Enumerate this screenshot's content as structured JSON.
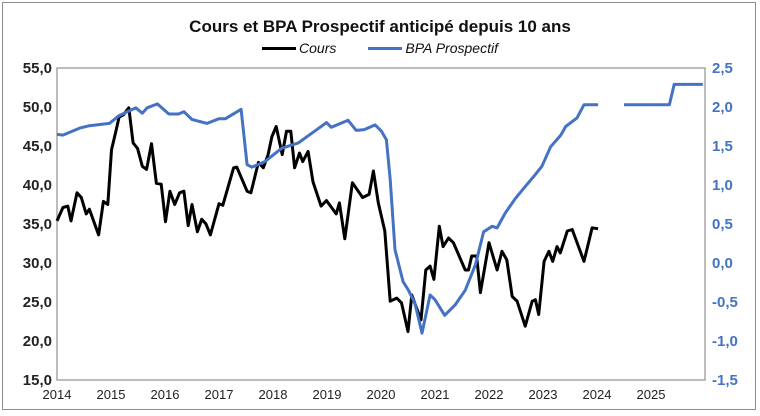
{
  "chart_data": {
    "type": "line",
    "title": "Cours et BPA Prospectif anticipé depuis 10 ans",
    "xlim": [
      2014,
      2026
    ],
    "x_ticks": [
      "2014",
      "2015",
      "2016",
      "2017",
      "2018",
      "2019",
      "2020",
      "2021",
      "2022",
      "2023",
      "2024",
      "2025"
    ],
    "y_left": {
      "lim": [
        15,
        55
      ],
      "ticks": [
        "15,0",
        "20,0",
        "25,0",
        "30,0",
        "35,0",
        "40,0",
        "45,0",
        "50,0",
        "55,0"
      ]
    },
    "y_right": {
      "lim": [
        -1.5,
        2.5
      ],
      "ticks": [
        "-1,5",
        "-1,0",
        "-0,5",
        "0,0",
        "0,5",
        "1,0",
        "1,5",
        "2,0",
        "2,5"
      ]
    },
    "legend_position": "top-center",
    "series": [
      {
        "name": "Cours",
        "axis": "left",
        "color": "#000000",
        "points": [
          [
            2014.0,
            35.4
          ],
          [
            2014.11,
            37.1
          ],
          [
            2014.2,
            37.3
          ],
          [
            2014.26,
            35.4
          ],
          [
            2014.37,
            39.0
          ],
          [
            2014.45,
            38.4
          ],
          [
            2014.54,
            36.3
          ],
          [
            2014.6,
            36.9
          ],
          [
            2014.77,
            33.6
          ],
          [
            2014.86,
            37.9
          ],
          [
            2014.94,
            37.5
          ],
          [
            2015.01,
            44.5
          ],
          [
            2015.09,
            46.9
          ],
          [
            2015.15,
            48.7
          ],
          [
            2015.23,
            49.0
          ],
          [
            2015.33,
            49.9
          ],
          [
            2015.41,
            45.4
          ],
          [
            2015.49,
            44.7
          ],
          [
            2015.58,
            42.4
          ],
          [
            2015.66,
            42.0
          ],
          [
            2015.75,
            45.3
          ],
          [
            2015.84,
            40.2
          ],
          [
            2015.93,
            40.1
          ],
          [
            2016.01,
            35.3
          ],
          [
            2016.09,
            39.2
          ],
          [
            2016.18,
            37.5
          ],
          [
            2016.27,
            39.0
          ],
          [
            2016.35,
            39.2
          ],
          [
            2016.43,
            34.8
          ],
          [
            2016.5,
            37.5
          ],
          [
            2016.6,
            34.0
          ],
          [
            2016.68,
            35.6
          ],
          [
            2016.76,
            35.0
          ],
          [
            2016.84,
            33.6
          ],
          [
            2017.0,
            37.6
          ],
          [
            2017.07,
            37.4
          ],
          [
            2017.27,
            42.2
          ],
          [
            2017.33,
            42.3
          ],
          [
            2017.52,
            39.2
          ],
          [
            2017.59,
            39.0
          ],
          [
            2017.73,
            42.9
          ],
          [
            2017.82,
            42.2
          ],
          [
            2017.91,
            43.9
          ],
          [
            2017.98,
            46.2
          ],
          [
            2018.06,
            47.5
          ],
          [
            2018.17,
            43.9
          ],
          [
            2018.25,
            46.9
          ],
          [
            2018.33,
            46.9
          ],
          [
            2018.4,
            42.2
          ],
          [
            2018.49,
            44.1
          ],
          [
            2018.55,
            43.0
          ],
          [
            2018.65,
            44.3
          ],
          [
            2018.74,
            40.4
          ],
          [
            2018.89,
            37.3
          ],
          [
            2018.99,
            38.0
          ],
          [
            2019.17,
            36.3
          ],
          [
            2019.23,
            37.7
          ],
          [
            2019.33,
            33.1
          ],
          [
            2019.47,
            40.3
          ],
          [
            2019.66,
            38.4
          ],
          [
            2019.78,
            38.8
          ],
          [
            2019.86,
            41.8
          ],
          [
            2019.95,
            37.7
          ],
          [
            2020.07,
            34.1
          ],
          [
            2020.17,
            25.1
          ],
          [
            2020.29,
            25.5
          ],
          [
            2020.38,
            24.9
          ],
          [
            2020.5,
            21.2
          ],
          [
            2020.57,
            25.9
          ],
          [
            2020.74,
            22.7
          ],
          [
            2020.83,
            29.1
          ],
          [
            2020.91,
            29.6
          ],
          [
            2020.98,
            27.9
          ],
          [
            2021.08,
            34.7
          ],
          [
            2021.15,
            32.1
          ],
          [
            2021.25,
            33.2
          ],
          [
            2021.34,
            32.6
          ],
          [
            2021.56,
            29.1
          ],
          [
            2021.62,
            29.1
          ],
          [
            2021.68,
            30.9
          ],
          [
            2021.77,
            30.9
          ],
          [
            2021.84,
            26.2
          ],
          [
            2022.0,
            32.6
          ],
          [
            2022.15,
            29.1
          ],
          [
            2022.24,
            31.5
          ],
          [
            2022.33,
            30.4
          ],
          [
            2022.43,
            25.7
          ],
          [
            2022.52,
            25.1
          ],
          [
            2022.67,
            21.9
          ],
          [
            2022.8,
            25.1
          ],
          [
            2022.86,
            25.3
          ],
          [
            2022.92,
            23.4
          ],
          [
            2023.02,
            30.2
          ],
          [
            2023.11,
            31.5
          ],
          [
            2023.18,
            30.2
          ],
          [
            2023.26,
            32.1
          ],
          [
            2023.32,
            31.3
          ],
          [
            2023.45,
            34.1
          ],
          [
            2023.54,
            34.3
          ],
          [
            2023.76,
            30.2
          ],
          [
            2023.91,
            34.5
          ],
          [
            2024.02,
            34.4
          ]
        ]
      },
      {
        "name": "BPA Prospectif",
        "axis": "right",
        "color": "#4472C4",
        "points": [
          [
            2014.0,
            1.65
          ],
          [
            2014.11,
            1.64
          ],
          [
            2014.42,
            1.73
          ],
          [
            2014.6,
            1.76
          ],
          [
            2014.97,
            1.79
          ],
          [
            2015.15,
            1.89
          ],
          [
            2015.46,
            1.99
          ],
          [
            2015.58,
            1.92
          ],
          [
            2015.67,
            1.99
          ],
          [
            2015.86,
            2.04
          ],
          [
            2016.07,
            1.91
          ],
          [
            2016.25,
            1.91
          ],
          [
            2016.35,
            1.94
          ],
          [
            2016.5,
            1.84
          ],
          [
            2016.78,
            1.79
          ],
          [
            2017.0,
            1.85
          ],
          [
            2017.12,
            1.85
          ],
          [
            2017.41,
            1.97
          ],
          [
            2017.52,
            1.26
          ],
          [
            2017.61,
            1.23
          ],
          [
            2017.85,
            1.3
          ],
          [
            2018.16,
            1.47
          ],
          [
            2018.47,
            1.54
          ],
          [
            2018.77,
            1.69
          ],
          [
            2018.99,
            1.8
          ],
          [
            2019.08,
            1.74
          ],
          [
            2019.39,
            1.83
          ],
          [
            2019.54,
            1.7
          ],
          [
            2019.69,
            1.71
          ],
          [
            2019.89,
            1.77
          ],
          [
            2020.01,
            1.69
          ],
          [
            2020.1,
            1.58
          ],
          [
            2020.17,
            1.07
          ],
          [
            2020.26,
            0.17
          ],
          [
            2020.41,
            -0.24
          ],
          [
            2020.51,
            -0.35
          ],
          [
            2020.63,
            -0.52
          ],
          [
            2020.76,
            -0.9
          ],
          [
            2020.91,
            -0.41
          ],
          [
            2021.0,
            -0.47
          ],
          [
            2021.18,
            -0.67
          ],
          [
            2021.37,
            -0.54
          ],
          [
            2021.56,
            -0.35
          ],
          [
            2021.75,
            -0.02
          ],
          [
            2021.9,
            0.4
          ],
          [
            2022.06,
            0.47
          ],
          [
            2022.15,
            0.45
          ],
          [
            2022.3,
            0.64
          ],
          [
            2022.49,
            0.83
          ],
          [
            2022.67,
            0.98
          ],
          [
            2022.83,
            1.11
          ],
          [
            2022.98,
            1.24
          ],
          [
            2023.14,
            1.49
          ],
          [
            2023.33,
            1.64
          ],
          [
            2023.42,
            1.75
          ],
          [
            2023.63,
            1.86
          ],
          [
            2023.76,
            2.03
          ],
          [
            2024.02,
            2.03
          ],
          null,
          [
            2024.5,
            2.03
          ],
          [
            2025.34,
            2.03
          ],
          [
            2025.43,
            2.29
          ],
          [
            2025.96,
            2.29
          ]
        ]
      }
    ]
  }
}
